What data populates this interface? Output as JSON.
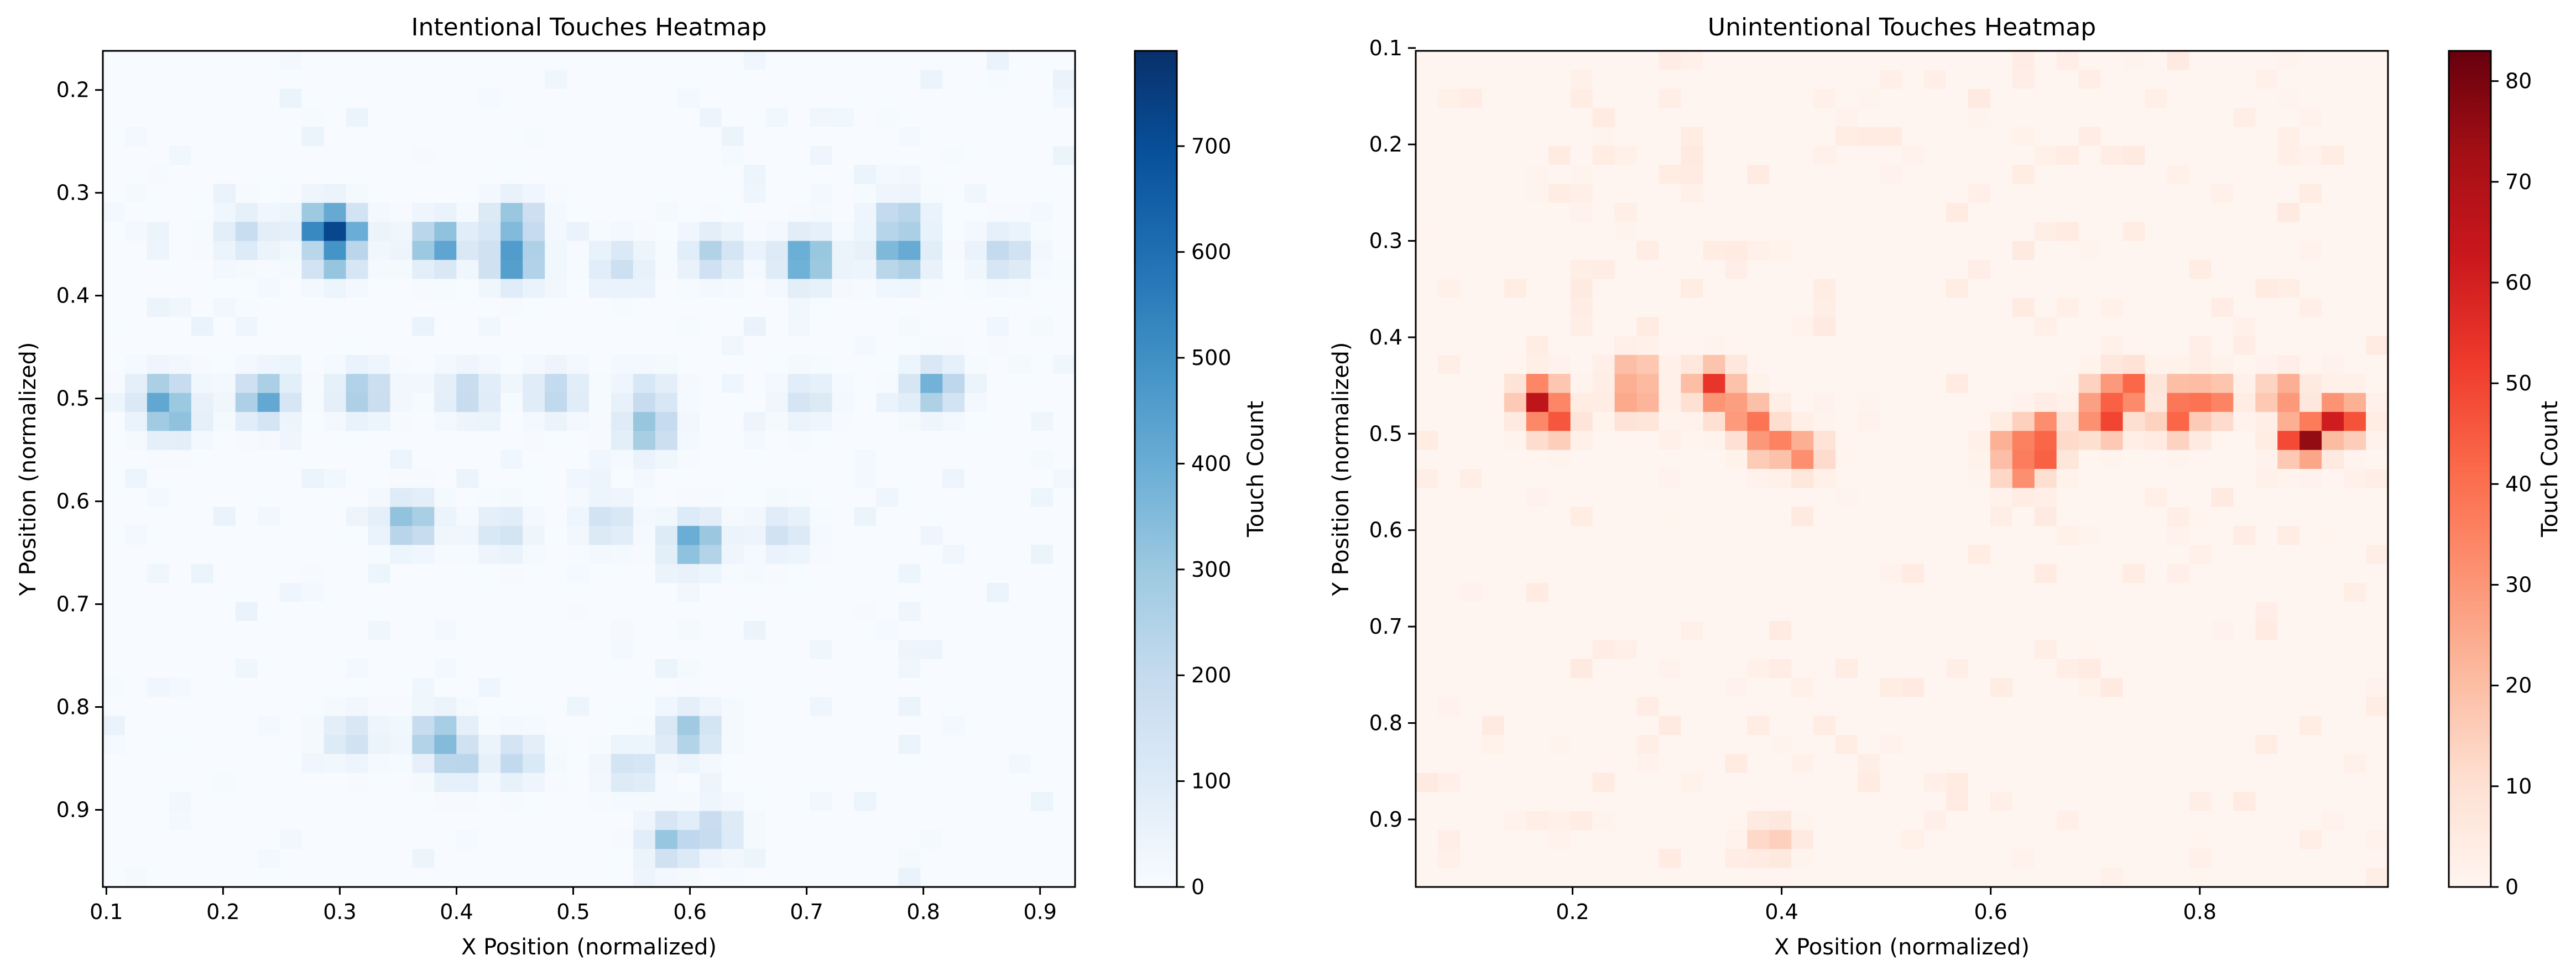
{
  "chart_data": [
    {
      "type": "heatmap",
      "title": "Intentional Touches Heatmap",
      "xlabel": "X Position (normalized)",
      "ylabel": "Y Position (normalized)",
      "colorbar_label": "Touch Count",
      "colormap": "Blues",
      "color_low": "#f7fbff",
      "color_high": "#08306b",
      "xlim": [
        0.097,
        0.93
      ],
      "ylim": [
        0.975,
        0.162
      ],
      "x_ticks": [
        "0.1",
        "0.2",
        "0.3",
        "0.4",
        "0.5",
        "0.6",
        "0.7",
        "0.8",
        "0.9"
      ],
      "y_ticks": [
        "0.2",
        "0.3",
        "0.4",
        "0.5",
        "0.6",
        "0.7",
        "0.8",
        "0.9"
      ],
      "vmin": 0,
      "vmax": 790,
      "colorbar_ticks": [
        "0",
        "100",
        "200",
        "300",
        "400",
        "500",
        "600",
        "700"
      ],
      "hotspots": [
        {
          "x": 0.29,
          "y": 0.335,
          "value": 790
        },
        {
          "x": 0.3,
          "y": 0.34,
          "value": 650
        },
        {
          "x": 0.295,
          "y": 0.36,
          "value": 480
        },
        {
          "x": 0.45,
          "y": 0.365,
          "value": 540
        },
        {
          "x": 0.45,
          "y": 0.33,
          "value": 380
        },
        {
          "x": 0.385,
          "y": 0.35,
          "value": 470
        },
        {
          "x": 0.7,
          "y": 0.365,
          "value": 500
        },
        {
          "x": 0.78,
          "y": 0.36,
          "value": 460
        },
        {
          "x": 0.78,
          "y": 0.33,
          "value": 320
        },
        {
          "x": 0.62,
          "y": 0.36,
          "value": 230
        },
        {
          "x": 0.87,
          "y": 0.36,
          "value": 200
        },
        {
          "x": 0.54,
          "y": 0.37,
          "value": 150
        },
        {
          "x": 0.22,
          "y": 0.34,
          "value": 160
        },
        {
          "x": 0.15,
          "y": 0.5,
          "value": 440
        },
        {
          "x": 0.155,
          "y": 0.515,
          "value": 400
        },
        {
          "x": 0.235,
          "y": 0.5,
          "value": 420
        },
        {
          "x": 0.32,
          "y": 0.495,
          "value": 300
        },
        {
          "x": 0.41,
          "y": 0.495,
          "value": 200
        },
        {
          "x": 0.485,
          "y": 0.495,
          "value": 220
        },
        {
          "x": 0.565,
          "y": 0.53,
          "value": 340
        },
        {
          "x": 0.565,
          "y": 0.5,
          "value": 180
        },
        {
          "x": 0.81,
          "y": 0.49,
          "value": 380
        },
        {
          "x": 0.7,
          "y": 0.5,
          "value": 130
        },
        {
          "x": 0.36,
          "y": 0.62,
          "value": 360
        },
        {
          "x": 0.605,
          "y": 0.64,
          "value": 460
        },
        {
          "x": 0.53,
          "y": 0.62,
          "value": 150
        },
        {
          "x": 0.44,
          "y": 0.63,
          "value": 140
        },
        {
          "x": 0.68,
          "y": 0.63,
          "value": 140
        },
        {
          "x": 0.385,
          "y": 0.83,
          "value": 380
        },
        {
          "x": 0.4,
          "y": 0.85,
          "value": 260
        },
        {
          "x": 0.31,
          "y": 0.83,
          "value": 150
        },
        {
          "x": 0.45,
          "y": 0.85,
          "value": 190
        },
        {
          "x": 0.6,
          "y": 0.825,
          "value": 300
        },
        {
          "x": 0.55,
          "y": 0.86,
          "value": 150
        },
        {
          "x": 0.585,
          "y": 0.93,
          "value": 300
        },
        {
          "x": 0.62,
          "y": 0.92,
          "value": 200
        }
      ]
    },
    {
      "type": "heatmap",
      "title": "Unintentional Touches Heatmap",
      "xlabel": "X Position (normalized)",
      "ylabel": "Y Position (normalized)",
      "colorbar_label": "Touch Count",
      "colormap": "Reds",
      "color_low": "#fff5f0",
      "color_high": "#67000d",
      "xlim": [
        0.05,
        0.98
      ],
      "ylim": [
        0.97,
        0.103
      ],
      "x_ticks": [
        "0.2",
        "0.4",
        "0.6",
        "0.8"
      ],
      "y_ticks": [
        "0.1",
        "0.2",
        "0.3",
        "0.4",
        "0.5",
        "0.6",
        "0.7",
        "0.8",
        "0.9"
      ],
      "vmin": 0,
      "vmax": 83,
      "colorbar_ticks": [
        "0",
        "10",
        "20",
        "30",
        "40",
        "50",
        "60",
        "70",
        "80"
      ],
      "hotspots": [
        {
          "x": 0.17,
          "y": 0.465,
          "value": 68
        },
        {
          "x": 0.18,
          "y": 0.485,
          "value": 50
        },
        {
          "x": 0.26,
          "y": 0.44,
          "value": 30
        },
        {
          "x": 0.26,
          "y": 0.465,
          "value": 28
        },
        {
          "x": 0.335,
          "y": 0.45,
          "value": 52
        },
        {
          "x": 0.345,
          "y": 0.465,
          "value": 35
        },
        {
          "x": 0.37,
          "y": 0.485,
          "value": 42
        },
        {
          "x": 0.39,
          "y": 0.51,
          "value": 40
        },
        {
          "x": 0.42,
          "y": 0.52,
          "value": 32
        },
        {
          "x": 0.625,
          "y": 0.515,
          "value": 42
        },
        {
          "x": 0.645,
          "y": 0.52,
          "value": 52
        },
        {
          "x": 0.65,
          "y": 0.5,
          "value": 45
        },
        {
          "x": 0.63,
          "y": 0.535,
          "value": 40
        },
        {
          "x": 0.73,
          "y": 0.455,
          "value": 50
        },
        {
          "x": 0.71,
          "y": 0.485,
          "value": 52
        },
        {
          "x": 0.71,
          "y": 0.465,
          "value": 45
        },
        {
          "x": 0.79,
          "y": 0.465,
          "value": 48
        },
        {
          "x": 0.81,
          "y": 0.465,
          "value": 45
        },
        {
          "x": 0.78,
          "y": 0.485,
          "value": 40
        },
        {
          "x": 0.88,
          "y": 0.46,
          "value": 32
        },
        {
          "x": 0.9,
          "y": 0.505,
          "value": 83
        },
        {
          "x": 0.935,
          "y": 0.485,
          "value": 70
        },
        {
          "x": 0.39,
          "y": 0.92,
          "value": 15
        }
      ]
    }
  ]
}
